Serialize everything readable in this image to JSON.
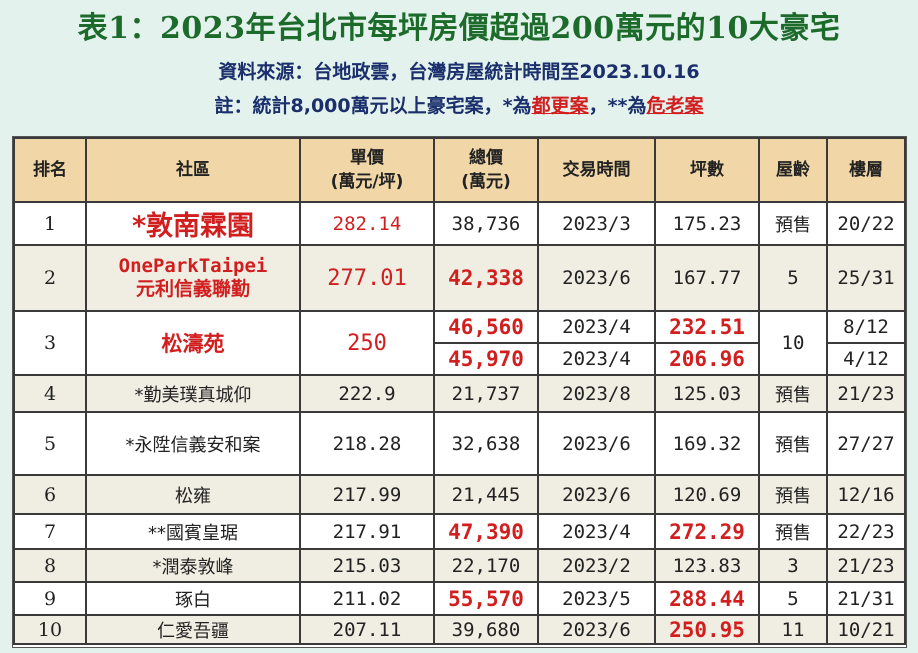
{
  "title": "表1：2023年台北市每坪房價超過200萬元的10大豪宅",
  "source_line": "資料來源：台地政雲，台灣房屋統計時間至2023.10.16",
  "note": {
    "prefix": "註：統計8,000萬元以上豪宅案，*為",
    "urban_renewal": "都更案",
    "sep": "，**為",
    "dangerous_old": "危老案"
  },
  "headers": {
    "rank": "排名",
    "community": "社區",
    "unit_price_l1": "單價",
    "unit_price_l2": "(萬元/坪)",
    "total_price_l1": "總價",
    "total_price_l2": "(萬元)",
    "date": "交易時間",
    "area": "坪數",
    "age": "屋齡",
    "floor": "樓層"
  },
  "rows": [
    {
      "rank": "1",
      "name": "*敦南霖園",
      "unit_price": "282.14",
      "total": "38,736",
      "date": "2023/3",
      "area": "175.23",
      "age": "預售",
      "floor": "20/22"
    },
    {
      "rank": "2",
      "name_l1": "OneParkTaipei",
      "name_l2": "元利信義聯勤",
      "unit_price": "277.01",
      "total": "42,338",
      "date": "2023/6",
      "area": "167.77",
      "age": "5",
      "floor": "25/31"
    },
    {
      "rank": "3",
      "name": "松濤苑",
      "unit_price": "250",
      "total_a": "46,560",
      "date_a": "2023/4",
      "area_a": "232.51",
      "age": "10",
      "floor_a": "8/12",
      "total_b": "45,970",
      "date_b": "2023/4",
      "area_b": "206.96",
      "floor_b": "4/12"
    },
    {
      "rank": "4",
      "name": "*勤美璞真城仰",
      "unit_price": "222.9",
      "total": "21,737",
      "date": "2023/8",
      "area": "125.03",
      "age": "預售",
      "floor": "21/23"
    },
    {
      "rank": "5",
      "name": "*永陞信義安和案",
      "unit_price": "218.28",
      "total": "32,638",
      "date": "2023/6",
      "area": "169.32",
      "age": "預售",
      "floor": "27/27"
    },
    {
      "rank": "6",
      "name": "松雍",
      "unit_price": "217.99",
      "total": "21,445",
      "date": "2023/6",
      "area": "120.69",
      "age": "預售",
      "floor": "12/16"
    },
    {
      "rank": "7",
      "name": "**國賓皇琚",
      "unit_price": "217.91",
      "total": "47,390",
      "date": "2023/4",
      "area": "272.29",
      "age": "預售",
      "floor": "22/23"
    },
    {
      "rank": "8",
      "name": "*潤泰敦峰",
      "unit_price": "215.03",
      "total": "22,170",
      "date": "2023/2",
      "area": "123.83",
      "age": "3",
      "floor": "21/23"
    },
    {
      "rank": "9",
      "name": "琢白",
      "unit_price": "211.02",
      "total": "55,570",
      "date": "2023/5",
      "area": "288.44",
      "age": "5",
      "floor": "21/31"
    },
    {
      "rank": "10",
      "name": "仁愛吾疆",
      "unit_price": "207.11",
      "total": "39,680",
      "date": "2023/6",
      "area": "250.95",
      "age": "11",
      "floor": "10/21"
    }
  ],
  "colors": {
    "title": "#1d6b2b",
    "subtitle": "#1a2f6b",
    "highlight": "#d11f1f",
    "header_bg": "#f1d7a7",
    "alt_row_bg": "#f0eee2",
    "page_bg": "#e4f2ee"
  }
}
